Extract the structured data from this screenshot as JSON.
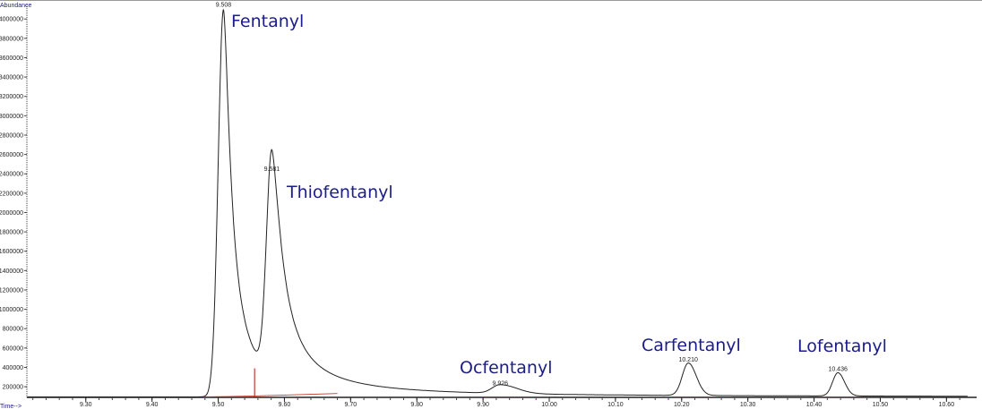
{
  "chart_data": {
    "type": "line",
    "title": "",
    "ylabel": "Abundance",
    "xlabel": "Time-->",
    "xlim": [
      9.211,
      10.632
    ],
    "ylim": [
      90000,
      4150000
    ],
    "grid": false,
    "x_ticks": [
      "9.30",
      "9.40",
      "9.50",
      "9.60",
      "9.70",
      "9.80",
      "9.90",
      "10.00",
      "10.10",
      "10.20",
      "10.30",
      "10.40",
      "10.50",
      "10.60"
    ],
    "y_ticks": [
      "200000",
      "400000",
      "600000",
      "800000",
      "1000000",
      "1200000",
      "1400000",
      "1600000",
      "1800000",
      "2000000",
      "2200000",
      "2400000",
      "2600000",
      "2800000",
      "3000000",
      "3200000",
      "3400000",
      "3600000",
      "3800000",
      "4000000"
    ],
    "baseline_abundance": 95000,
    "peaks": [
      {
        "compound": "Fentanyl",
        "rt": 9.508,
        "rt_label": "9.508",
        "abundance": 4100000
      },
      {
        "compound": "Thiofentanyl",
        "rt": 9.581,
        "rt_label": "9.581",
        "abundance": 2400000
      },
      {
        "compound": "Ocfentanyl",
        "rt": 9.926,
        "rt_label": "9.926",
        "abundance": 185000
      },
      {
        "compound": "Carfentanyl",
        "rt": 10.21,
        "rt_label": "10.210",
        "abundance": 430000
      },
      {
        "compound": "Lofentanyl",
        "rt": 10.436,
        "rt_label": "10.436",
        "abundance": 335000
      }
    ],
    "valley": {
      "rt": 9.555,
      "abundance": 390000
    },
    "colors": {
      "trace": "#222222",
      "integration": "#c0392b",
      "compound_label": "#1c1c8a"
    }
  }
}
